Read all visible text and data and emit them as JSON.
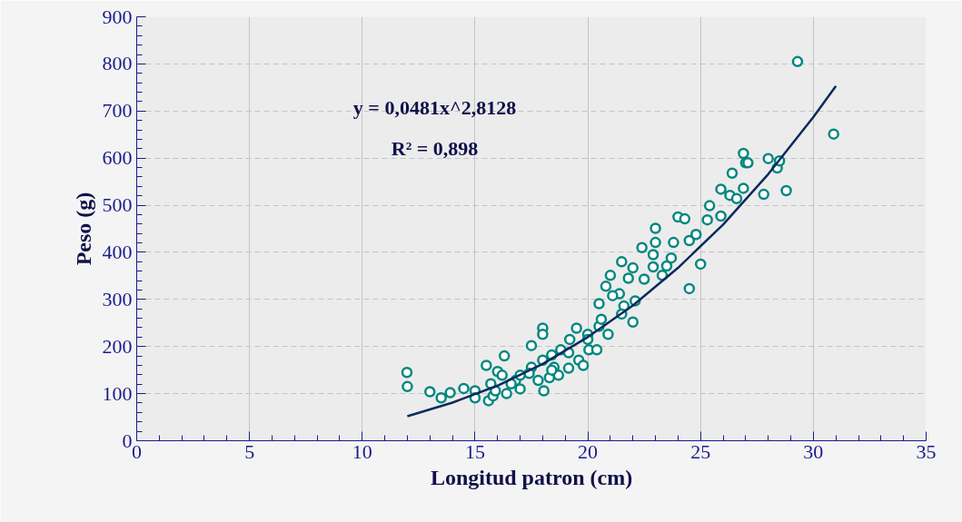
{
  "chart_data": {
    "type": "scatter",
    "xlabel": "Longitud patron (cm)",
    "ylabel": "Peso (g)",
    "annotations": [
      "y = 0,0481x^2,8128",
      "R² = 0,898"
    ],
    "xlim": [
      0,
      35
    ],
    "xticks": [
      0,
      5,
      10,
      15,
      20,
      25,
      30,
      35
    ],
    "ylim": [
      0,
      900
    ],
    "yticks": [
      0,
      100,
      200,
      300,
      400,
      500,
      600,
      700,
      800,
      900
    ],
    "grid": true,
    "marker": "circle",
    "series": [
      {
        "color": "#00877f",
        "x": [
          11.98,
          12.0,
          13.0,
          13.5,
          13.9,
          14.5,
          15.0,
          15.0,
          15.5,
          16.0,
          16.3,
          15.6,
          15.8,
          16.4,
          17.0,
          17.5,
          18.0,
          18.0,
          18.05,
          17.5,
          18.0,
          18.4,
          18.5,
          18.8,
          19.2,
          19.5,
          20.0,
          20.05,
          19.6,
          19.15,
          18.3,
          16.8,
          16.2,
          20.5,
          20.5,
          20.8,
          21.0,
          21.5,
          21.4,
          21.6,
          22.1,
          22.4,
          23.0,
          23.0,
          22.9,
          22.9,
          23.3,
          23.5,
          23.8,
          23.7,
          24.0,
          24.3,
          24.5,
          24.5,
          24.8,
          25.0,
          25.3,
          25.4,
          25.9,
          25.9,
          26.3,
          26.4,
          26.6,
          26.9,
          26.9,
          27.0,
          27.1,
          27.8,
          28.0,
          28.4,
          28.5,
          28.8,
          29.3,
          30.9,
          20.0,
          20.6,
          21.1,
          21.8,
          22.0,
          21.5,
          22.5,
          22.0,
          20.9,
          20.4,
          19.8,
          19.15,
          18.7,
          17.4,
          17.0,
          16.6,
          15.9,
          15.7,
          17.8,
          18.4
        ],
        "values": [
          145,
          115,
          104,
          91,
          102,
          111,
          106,
          91,
          160,
          147,
          180,
          85,
          95,
          100,
          110,
          202,
          239,
          226,
          106,
          156,
          171,
          182,
          156,
          193,
          215,
          239,
          226,
          193,
          171,
          154,
          134,
          128,
          139,
          243,
          291,
          328,
          351,
          380,
          312,
          286,
          297,
          410,
          451,
          421,
          369,
          395,
          351,
          371,
          421,
          388,
          475,
          471,
          425,
          323,
          438,
          375,
          469,
          499,
          534,
          477,
          521,
          568,
          514,
          536,
          610,
          590,
          590,
          523,
          599,
          579,
          594,
          531,
          805,
          651,
          215,
          258,
          308,
          345,
          367,
          269,
          343,
          252,
          226,
          193,
          160,
          187,
          139,
          143,
          139,
          121,
          106,
          121,
          128,
          150
        ]
      },
      {
        "type": "line",
        "color": "#0a2a5e",
        "marker": "none",
        "x": [
          12,
          14,
          16,
          18,
          20,
          22,
          24,
          26,
          28,
          30,
          31
        ],
        "values": [
          52,
          81,
          117,
          163,
          220,
          287,
          367,
          459,
          566,
          687,
          753
        ]
      }
    ]
  }
}
